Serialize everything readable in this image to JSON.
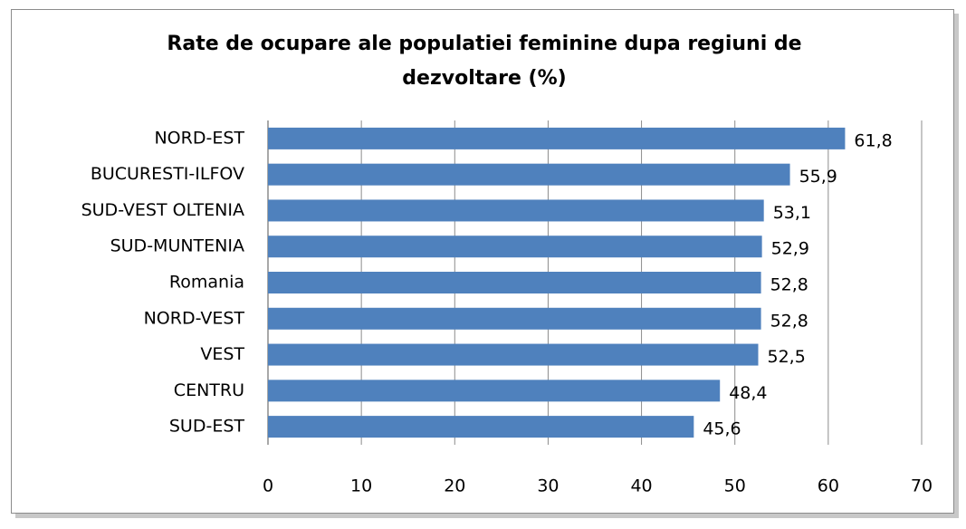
{
  "chart_data": {
    "type": "bar",
    "orientation": "horizontal",
    "title": "Rate de ocupare ale populatiei feminine dupa regiuni de dezvoltare (%)",
    "categories": [
      "NORD-EST",
      "BUCURESTI-ILFOV",
      "SUD-VEST OLTENIA",
      "SUD-MUNTENIA",
      "Romania",
      "NORD-VEST",
      "VEST",
      "CENTRU",
      "SUD-EST"
    ],
    "values": [
      61.8,
      55.9,
      53.1,
      52.9,
      52.8,
      52.8,
      52.5,
      48.4,
      45.6
    ],
    "value_labels": [
      "61,8",
      "55,9",
      "53,1",
      "52,9",
      "52,8",
      "52,8",
      "52,5",
      "48,4",
      "45,6"
    ],
    "color": "#4f81bd",
    "xlim": [
      0,
      70
    ],
    "xticks": [
      0,
      10,
      20,
      30,
      40,
      50,
      60,
      70
    ],
    "grid": true
  }
}
